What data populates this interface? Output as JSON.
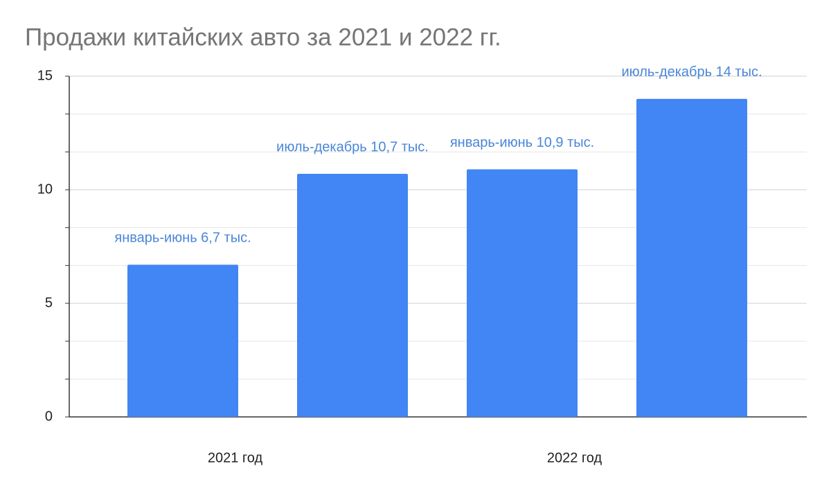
{
  "chart_data": {
    "type": "bar",
    "title": "Продажи китайских авто за 2021 и 2022 гг.",
    "categories": [
      "2021 год",
      "2022 год"
    ],
    "series": [
      {
        "color": "#4285f4",
        "values": [
          6.7,
          10.9
        ],
        "value_labels": [
          "январь-июнь 6,7 тыс.",
          "январь-июнь 10,9 тыс."
        ]
      },
      {
        "color": "#4285f4",
        "values": [
          10.7,
          14
        ],
        "value_labels": [
          "июль-декабрь 10,7 тыс.",
          "июль-декабрь 14 тыс."
        ]
      }
    ],
    "ylim": [
      0,
      15
    ],
    "yticks": [
      0,
      5,
      10,
      15
    ],
    "grid": true,
    "minor_grid_divisions": 3
  }
}
